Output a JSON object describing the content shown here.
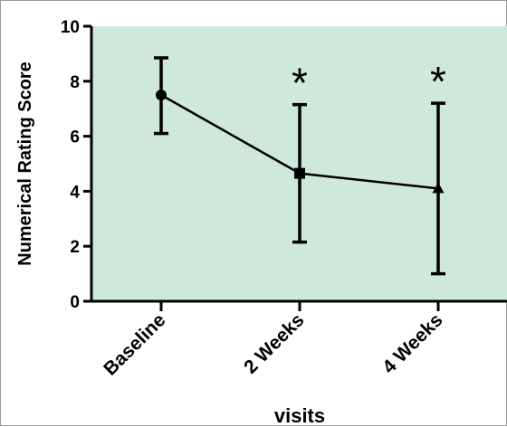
{
  "chart_data": {
    "type": "line",
    "title": "",
    "xlabel": "visits",
    "ylabel": "Numerical Rating Score",
    "categories": [
      "Baseline",
      "2 Weeks",
      "4 Weeks"
    ],
    "ylim": [
      0,
      10
    ],
    "yticks": [
      "0",
      "2",
      "4",
      "6",
      "8",
      "10"
    ],
    "series": [
      {
        "values": [
          7.5,
          4.65,
          4.1
        ],
        "error_low": [
          6.1,
          2.15,
          1.0
        ],
        "error_high": [
          8.85,
          7.15,
          7.2
        ],
        "markers": [
          "circle",
          "square",
          "triangle"
        ]
      }
    ],
    "annotations": [
      "",
      "*",
      "*"
    ],
    "grid": false,
    "plot_background": "#cfe8dc",
    "line_color": "#000000"
  }
}
